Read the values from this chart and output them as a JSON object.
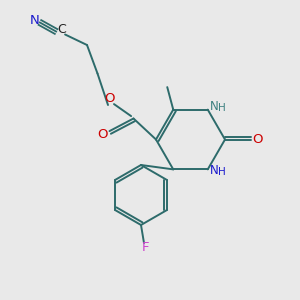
{
  "background_color": "#e9e9e9",
  "bond_color": "#2d6b6b",
  "N_blue": "#1a1acd",
  "N_teal": "#3d8080",
  "O_red": "#cc0000",
  "F_magenta": "#cc44cc",
  "C_dark": "#222222",
  "figsize": [
    3.0,
    3.0
  ],
  "dpi": 100,
  "xlim": [
    0,
    10
  ],
  "ylim": [
    0,
    10
  ]
}
